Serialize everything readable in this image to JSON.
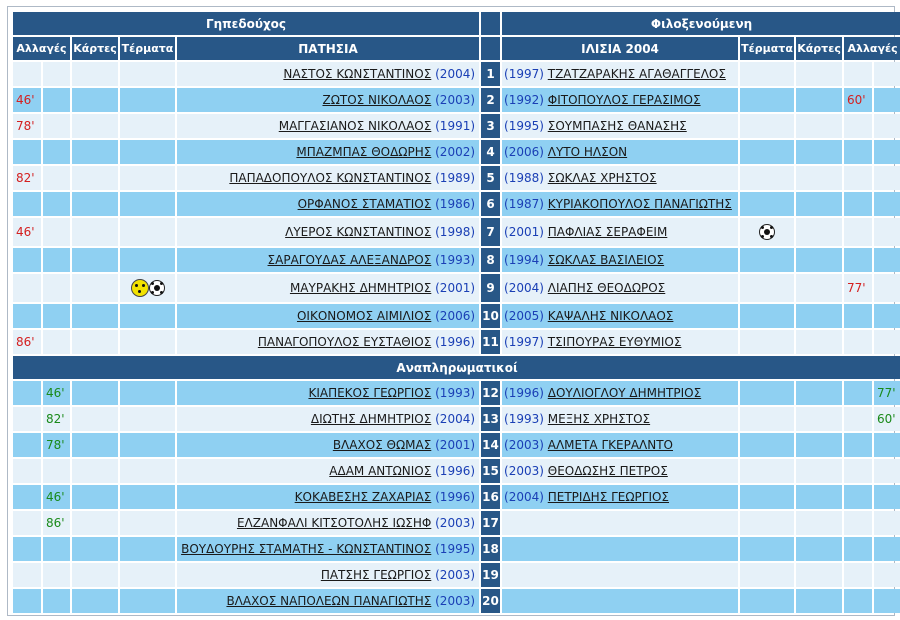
{
  "headers": {
    "home_team_label": "Γηπεδούχος",
    "away_team_label": "Φιλοξενούμενη",
    "home_team_name": "ΠΑΤΗΣΙΑ",
    "away_team_name": "ΙΛΙΣΙΑ 2004",
    "col_subs": "Αλλαγές",
    "col_cards": "Κάρτες",
    "col_goals": "Τέρματα",
    "substitutes_label": "Αναπληρωματικοί"
  },
  "colors": {
    "header_bg": "#285787",
    "row_dark": "#8fd0f2",
    "row_light": "#e6f1f9",
    "sub_off": "#d42020",
    "sub_on": "#1a8a1a",
    "year": "#1a3fb5"
  },
  "starters": [
    {
      "num": "1",
      "home_name": "ΝΑΣΤΟΣ ΚΩΝΣΤΑΝΤΙΝΟΣ",
      "home_year": "(2004)",
      "home_sub": "",
      "away_year": "(1997)",
      "away_name": "ΤΖΑΤΖΑΡΑΚΗΣ ΑΓΑΘΑΓΓΕΛΟΣ",
      "away_sub": ""
    },
    {
      "num": "2",
      "home_name": "ΖΩΤΟΣ ΝΙΚΟΛΑΟΣ",
      "home_year": "(2003)",
      "home_sub": "46'",
      "away_year": "(1992)",
      "away_name": "ΦΙΤΟΠΟΥΛΟΣ ΓΕΡΑΣΙΜΟΣ",
      "away_sub": "60'"
    },
    {
      "num": "3",
      "home_name": "ΜΑΓΓΑΣΙΑΝΟΣ ΝΙΚΟΛΑΟΣ",
      "home_year": "(1991)",
      "home_sub": "78'",
      "away_year": "(1995)",
      "away_name": "ΣΟΥΜΠΑΣΗΣ ΘΑΝΑΣΗΣ",
      "away_sub": ""
    },
    {
      "num": "4",
      "home_name": "ΜΠΑΖΜΠΑΣ ΘΟΔΩΡΗΣ",
      "home_year": "(2002)",
      "home_sub": "",
      "away_year": "(2006)",
      "away_name": "ΛΥΤΟ ΗΛΣΟΝ",
      "away_sub": ""
    },
    {
      "num": "5",
      "home_name": "ΠΑΠΑΔΟΠΟΥΛΟΣ ΚΩΝΣΤΑΝΤΙΝΟΣ",
      "home_year": "(1989)",
      "home_sub": "82'",
      "away_year": "(1988)",
      "away_name": "ΣΩΚΛΑΣ ΧΡΗΣΤΟΣ",
      "away_sub": ""
    },
    {
      "num": "6",
      "home_name": "ΟΡΦΑΝΟΣ ΣΤΑΜΑΤΙΟΣ",
      "home_year": "(1986)",
      "home_sub": "",
      "away_year": "(1987)",
      "away_name": "ΚΥΡΙΑΚΟΠΟΥΛΟΣ ΠΑΝΑΓΙΩΤΗΣ",
      "away_sub": ""
    },
    {
      "num": "7",
      "home_name": "ΛΥΕΡΟΣ ΚΩΝΣΤΑΝΤΙΝΟΣ",
      "home_year": "(1998)",
      "home_sub": "46'",
      "away_year": "(2001)",
      "away_name": "ΠΑΦΛΙΑΣ ΣΕΡΑΦΕΙΜ",
      "away_sub": "",
      "away_goal_icon": "soccer-ball-icon"
    },
    {
      "num": "8",
      "home_name": "ΣΑΡΑΓΟΥΔΑΣ ΑΛΕΞΑΝΔΡΟΣ",
      "home_year": "(1993)",
      "home_sub": "",
      "away_year": "(1994)",
      "away_name": "ΣΩΚΛΑΣ ΒΑΣΙΛΕΙΟΣ",
      "away_sub": ""
    },
    {
      "num": "9",
      "home_name": "ΜΑΥΡΑΚΗΣ ΔΗΜΗΤΡΙΟΣ",
      "home_year": "(2001)",
      "home_sub": "",
      "home_goal_icons": [
        "yellow-card-ball-icon",
        "soccer-ball-icon"
      ],
      "away_year": "(2004)",
      "away_name": "ΛΙΑΠΗΣ ΘΕΟΔΩΡΟΣ",
      "away_sub": "77'"
    },
    {
      "num": "10",
      "home_name": "ΟΙΚΟΝΟΜΟΣ ΑΙΜΙΛΙΟΣ",
      "home_year": "(2006)",
      "home_sub": "",
      "away_year": "(2005)",
      "away_name": "ΚΑΨΑΛΗΣ ΝΙΚΟΛΑΟΣ",
      "away_sub": ""
    },
    {
      "num": "11",
      "home_name": "ΠΑΝΑΓΟΠΟΥΛΟΣ ΕΥΣΤΑΘΙΟΣ",
      "home_year": "(1996)",
      "home_sub": "86'",
      "away_year": "(1997)",
      "away_name": "ΤΣΙΠΟΥΡΑΣ ΕΥΘΥΜΙΟΣ",
      "away_sub": ""
    }
  ],
  "substitutes": [
    {
      "num": "12",
      "home_name": "ΚΙΑΠΕΚΟΣ ΓΕΩΡΓΙΟΣ",
      "home_year": "(1993)",
      "home_sub": "46'",
      "away_year": "(1996)",
      "away_name": "ΔΟΥΛΙΟΓΛΟΥ ΔΗΜΗΤΡΙΟΣ",
      "away_sub": "77'"
    },
    {
      "num": "13",
      "home_name": "ΔΙΩΤΗΣ ΔΗΜΗΤΡΙΟΣ",
      "home_year": "(2004)",
      "home_sub": "82'",
      "away_year": "(1993)",
      "away_name": "ΜΕΞΗΣ ΧΡΗΣΤΟΣ",
      "away_sub": "60'"
    },
    {
      "num": "14",
      "home_name": "ΒΛΑΧΟΣ ΘΩΜΑΣ",
      "home_year": "(2001)",
      "home_sub": "78'",
      "away_year": "(2003)",
      "away_name": "ΑΛΜΕΤΑ ΓΚΕΡΑΛΝΤΟ",
      "away_sub": ""
    },
    {
      "num": "15",
      "home_name": "ΑΔΑΜ ΑΝΤΩΝΙΟΣ",
      "home_year": "(1996)",
      "home_sub": "",
      "away_year": "(2003)",
      "away_name": "ΘΕΟΔΩΣΗΣ ΠΕΤΡΟΣ",
      "away_sub": ""
    },
    {
      "num": "16",
      "home_name": "ΚΟΚΑΒΕΣΗΣ ΖΑΧΑΡΙΑΣ",
      "home_year": "(1996)",
      "home_sub": "46'",
      "away_year": "(2004)",
      "away_name": "ΠΕΤΡΙΔΗΣ ΓΕΩΡΓΙΟΣ",
      "away_sub": ""
    },
    {
      "num": "17",
      "home_name": "ΕΛΖΑΝΦΑΛΙ ΚΙΤΣΟΤΟΛΗΣ ΙΩΣΗΦ",
      "home_year": "(2003)",
      "home_sub": "86'",
      "away_year": "",
      "away_name": "",
      "away_sub": ""
    },
    {
      "num": "18",
      "home_name": "ΒΟΥΔΟΥΡΗΣ ΣΤΑΜΑΤΗΣ - ΚΩΝΣΤΑΝΤΙΝΟΣ",
      "home_year": "(1995)",
      "home_sub": "",
      "away_year": "",
      "away_name": "",
      "away_sub": ""
    },
    {
      "num": "19",
      "home_name": "ΠΑΤΣΗΣ ΓΕΩΡΓΙΟΣ",
      "home_year": "(2003)",
      "home_sub": "",
      "away_year": "",
      "away_name": "",
      "away_sub": ""
    },
    {
      "num": "20",
      "home_name": "ΒΛΑΧΟΣ ΝΑΠΟΛΕΩΝ ΠΑΝΑΓΙΩΤΗΣ",
      "home_year": "(2003)",
      "home_sub": "",
      "away_year": "",
      "away_name": "",
      "away_sub": ""
    }
  ]
}
